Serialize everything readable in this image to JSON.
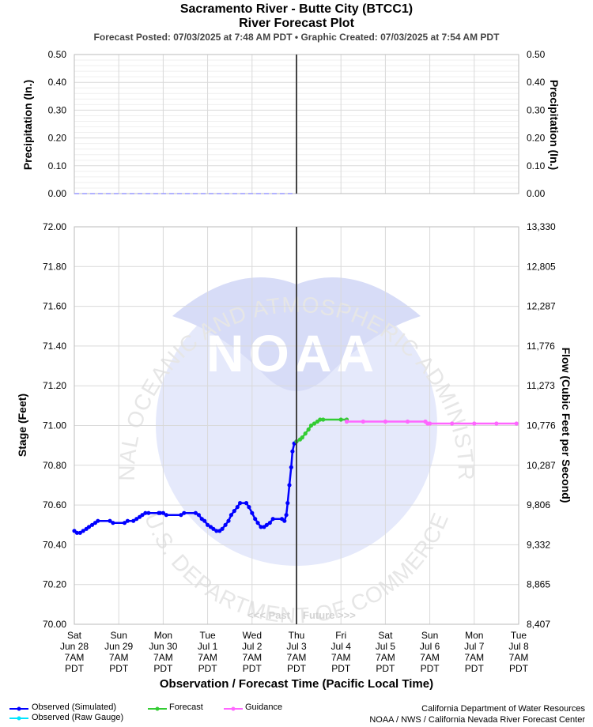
{
  "header": {
    "title": "Sacramento River - Butte City (BTCC1)",
    "subtitle": "River Forecast Plot",
    "posted": "Forecast Posted: 07/03/2025 at 7:48 AM PDT",
    "separator": "•",
    "created": "Graphic Created: 07/03/2025 at 7:54 AM PDT"
  },
  "chart_data": [
    {
      "type": "line",
      "panel": "precipitation",
      "ylabel": "Precipitation (In.)",
      "ylabel_right": "Precipitation (In.)",
      "ylim": [
        0,
        0.5
      ],
      "y_ticks": [
        "0.00",
        "0.10",
        "0.20",
        "0.30",
        "0.40",
        "0.50"
      ],
      "series": [
        {
          "name": "Observed",
          "x_range_days": [
            0,
            5
          ],
          "values": [
            0
          ]
        }
      ]
    },
    {
      "type": "line",
      "panel": "stage",
      "xlabel": "Observation / Forecast Time (Pacific Local Time)",
      "ylabel": "Stage (Feet)",
      "ylabel_right": "Flow (Cubic Feet per Second)",
      "ylim": [
        70.0,
        72.0
      ],
      "y_ticks": [
        "70.00",
        "70.20",
        "70.40",
        "70.60",
        "70.80",
        "71.00",
        "71.20",
        "71.40",
        "71.60",
        "71.80",
        "72.00"
      ],
      "y_ticks_right": [
        "8,407",
        "8,865",
        "9,332",
        "9,806",
        "10,287",
        "10,776",
        "11,273",
        "11,776",
        "12,287",
        "12,805",
        "13,330"
      ],
      "x_ticks": [
        [
          "Sat",
          "Jun 28",
          "7AM",
          "PDT"
        ],
        [
          "Sun",
          "Jun 29",
          "7AM",
          "PDT"
        ],
        [
          "Mon",
          "Jun 30",
          "7AM",
          "PDT"
        ],
        [
          "Tue",
          "Jul 1",
          "7AM",
          "PDT"
        ],
        [
          "Wed",
          "Jul 2",
          "7AM",
          "PDT"
        ],
        [
          "Thu",
          "Jul 3",
          "7AM",
          "PDT"
        ],
        [
          "Fri",
          "Jul 4",
          "7AM",
          "PDT"
        ],
        [
          "Sat",
          "Jul 5",
          "7AM",
          "PDT"
        ],
        [
          "Sun",
          "Jul 6",
          "7AM",
          "PDT"
        ],
        [
          "Mon",
          "Jul 7",
          "7AM",
          "PDT"
        ],
        [
          "Tue",
          "Jul 8",
          "7AM",
          "PDT"
        ]
      ],
      "past_label": "<<< Past",
      "future_label": "Future >>>",
      "series": [
        {
          "name": "Observed (Simulated)",
          "color": "#0000ff",
          "points": [
            [
              0.0,
              70.47
            ],
            [
              0.06,
              70.46
            ],
            [
              0.13,
              70.46
            ],
            [
              0.2,
              70.47
            ],
            [
              0.27,
              70.48
            ],
            [
              0.33,
              70.49
            ],
            [
              0.4,
              70.5
            ],
            [
              0.47,
              70.51
            ],
            [
              0.53,
              70.52
            ],
            [
              0.8,
              70.52
            ],
            [
              0.87,
              70.51
            ],
            [
              1.13,
              70.51
            ],
            [
              1.2,
              70.52
            ],
            [
              1.33,
              70.52
            ],
            [
              1.4,
              70.53
            ],
            [
              1.47,
              70.54
            ],
            [
              1.53,
              70.55
            ],
            [
              1.6,
              70.56
            ],
            [
              1.67,
              70.56
            ],
            [
              1.9,
              70.56
            ],
            [
              1.93,
              70.56
            ],
            [
              2.0,
              70.56
            ],
            [
              2.07,
              70.55
            ],
            [
              2.4,
              70.55
            ],
            [
              2.47,
              70.56
            ],
            [
              2.73,
              70.56
            ],
            [
              2.8,
              70.55
            ],
            [
              2.87,
              70.53
            ],
            [
              2.93,
              70.52
            ],
            [
              3.0,
              70.5
            ],
            [
              3.07,
              70.49
            ],
            [
              3.13,
              70.48
            ],
            [
              3.2,
              70.47
            ],
            [
              3.27,
              70.47
            ],
            [
              3.33,
              70.48
            ],
            [
              3.4,
              70.5
            ],
            [
              3.47,
              70.52
            ],
            [
              3.53,
              70.55
            ],
            [
              3.6,
              70.57
            ],
            [
              3.67,
              70.59
            ],
            [
              3.73,
              70.61
            ],
            [
              3.87,
              70.61
            ],
            [
              3.93,
              70.59
            ],
            [
              4.0,
              70.56
            ],
            [
              4.07,
              70.53
            ],
            [
              4.13,
              70.51
            ],
            [
              4.2,
              70.49
            ],
            [
              4.27,
              70.49
            ],
            [
              4.33,
              70.5
            ],
            [
              4.4,
              70.51
            ],
            [
              4.47,
              70.53
            ],
            [
              4.67,
              70.53
            ],
            [
              4.73,
              70.52
            ],
            [
              4.77,
              70.55
            ],
            [
              4.8,
              70.61
            ],
            [
              4.84,
              70.7
            ],
            [
              4.88,
              70.79
            ],
            [
              4.91,
              70.87
            ],
            [
              4.95,
              70.91
            ],
            [
              5.0,
              70.92
            ]
          ]
        },
        {
          "name": "Observed (Raw Gauge)",
          "color": "#00e5ff",
          "points": []
        },
        {
          "name": "Forecast",
          "color": "#33cc33",
          "points": [
            [
              5.0,
              70.92
            ],
            [
              5.08,
              70.93
            ],
            [
              5.13,
              70.94
            ],
            [
              5.2,
              70.96
            ],
            [
              5.27,
              70.98
            ],
            [
              5.33,
              71.0
            ],
            [
              5.4,
              71.01
            ],
            [
              5.47,
              71.02
            ],
            [
              5.53,
              71.03
            ],
            [
              5.6,
              71.03
            ],
            [
              6.0,
              71.03
            ],
            [
              6.13,
              71.03
            ]
          ]
        },
        {
          "name": "Guidance",
          "color": "#ff66ff",
          "points": [
            [
              6.13,
              71.02
            ],
            [
              6.5,
              71.02
            ],
            [
              7.0,
              71.02
            ],
            [
              7.5,
              71.02
            ],
            [
              7.9,
              71.02
            ],
            [
              7.95,
              71.01
            ],
            [
              8.0,
              71.01
            ],
            [
              8.5,
              71.01
            ],
            [
              9.0,
              71.01
            ],
            [
              9.5,
              71.01
            ],
            [
              9.95,
              71.01
            ]
          ]
        }
      ]
    }
  ],
  "watermark": {
    "logo_text": "NOAA",
    "ring_top": "NATIONAL OCEANIC AND ATMOSPHERIC ADMINISTRATION",
    "ring_bottom": "U.S. DEPARTMENT OF COMMERCE"
  },
  "credits": {
    "line1": "California Department of Water Resources",
    "line2": "NOAA / NWS / California Nevada River Forecast Center"
  }
}
